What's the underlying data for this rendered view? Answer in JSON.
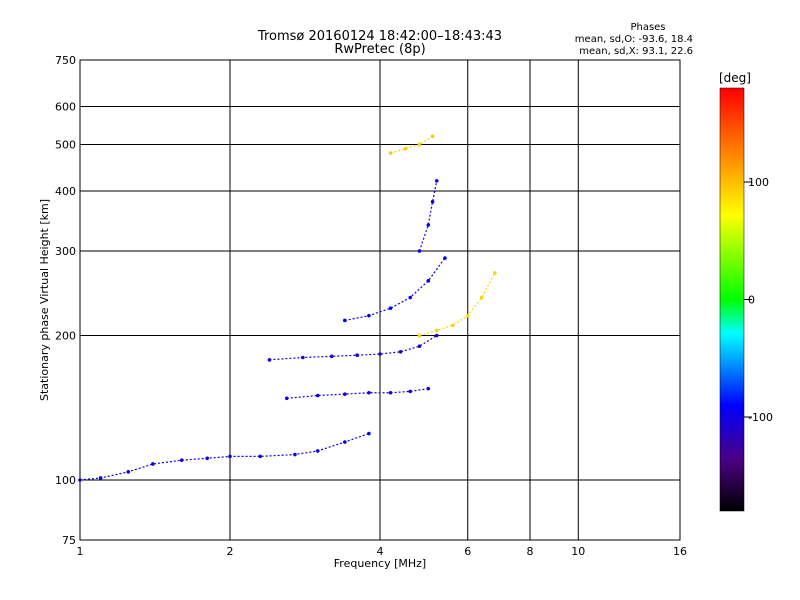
{
  "chart_data": {
    "type": "scatter",
    "title": "Tromsø 20160124 18:42:00–18:43:43",
    "subtitle": "RwPretec (8p)",
    "xlabel": "Frequency [MHz]",
    "ylabel": "Stationary phase Virtual Height [km]",
    "x_scale": "log",
    "y_scale": "log",
    "xlim": [
      1,
      16
    ],
    "ylim": [
      75,
      750
    ],
    "x_ticks": [
      1,
      2,
      4,
      6,
      8,
      10,
      16
    ],
    "x_tick_labels": [
      "1",
      "2",
      "4",
      "6",
      "8",
      "10",
      "16"
    ],
    "y_ticks": [
      75,
      100,
      200,
      300,
      400,
      500,
      600,
      750
    ],
    "y_tick_labels": [
      "75",
      "100",
      "200",
      "300",
      "400",
      "500",
      "600",
      "750"
    ],
    "grid": true,
    "stats": {
      "heading": "Phases",
      "o_mode": "mean, sd,O: -93.6, 18.4",
      "x_mode": "mean, sd,X:  93.1, 22.6"
    },
    "colorbar": {
      "label": "[deg]",
      "range": [
        -180,
        180
      ],
      "ticks": [
        100,
        0,
        -100
      ],
      "tick_labels": [
        "100",
        "0",
        "-100"
      ]
    },
    "traces": [
      {
        "mode": "O",
        "phase": -95,
        "x": [
          1.0,
          1.1,
          1.25,
          1.4,
          1.6,
          1.8,
          2.0,
          2.3,
          2.7,
          3.0,
          3.4,
          3.8
        ],
        "y": [
          100,
          101,
          104,
          108,
          110,
          111,
          112,
          112,
          113,
          115,
          120,
          125
        ]
      },
      {
        "mode": "O",
        "phase": -100,
        "x": [
          2.6,
          3.0,
          3.4,
          3.8,
          4.2,
          4.6,
          5.0
        ],
        "y": [
          148,
          150,
          151,
          152,
          152,
          153,
          155
        ]
      },
      {
        "mode": "O",
        "phase": -110,
        "x": [
          2.4,
          2.8,
          3.2,
          3.6,
          4.0,
          4.4,
          4.8,
          5.2
        ],
        "y": [
          178,
          180,
          181,
          182,
          183,
          185,
          190,
          200
        ]
      },
      {
        "mode": "O",
        "phase": -90,
        "x": [
          3.4,
          3.8,
          4.2,
          4.6,
          5.0,
          5.4
        ],
        "y": [
          215,
          220,
          228,
          240,
          260,
          290
        ]
      },
      {
        "mode": "O",
        "phase": -100,
        "x": [
          4.8,
          5.0,
          5.1,
          5.2
        ],
        "y": [
          300,
          340,
          380,
          420
        ]
      },
      {
        "mode": "X",
        "phase": 90,
        "x": [
          4.8,
          5.2,
          5.6,
          6.0,
          6.4,
          6.8
        ],
        "y": [
          200,
          205,
          210,
          220,
          240,
          270
        ]
      },
      {
        "mode": "X",
        "phase": 95,
        "x": [
          4.2,
          4.5,
          4.8,
          5.1
        ],
        "y": [
          480,
          490,
          500,
          520
        ]
      }
    ]
  }
}
